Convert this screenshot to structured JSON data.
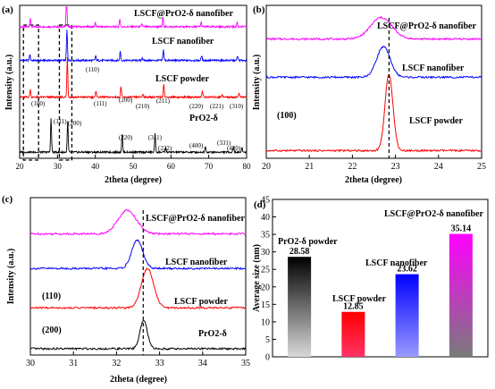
{
  "chart_data": [
    {
      "panel": "(a)",
      "type": "line",
      "xlabel": "2theta (degree)",
      "ylabel": "Intensity (a.u.)",
      "xlim": [
        20,
        80
      ],
      "xticks": [
        20,
        30,
        40,
        50,
        60,
        70,
        80
      ],
      "series": [
        {
          "name": "LSCF@PrO2-δ nanofiber",
          "color": "#ff00ff",
          "offset": 0.86,
          "peaks": [
            [
              22.8,
              0.06
            ],
            [
              32.4,
              0.22
            ],
            [
              40.0,
              0.03
            ],
            [
              46.5,
              0.05
            ],
            [
              52.3,
              0.02
            ],
            [
              57.9,
              0.06
            ],
            [
              68.0,
              0.03
            ],
            [
              77.5,
              0.03
            ]
          ]
        },
        {
          "name": "LSCF nanofiber",
          "color": "#0000ff",
          "offset": 0.64,
          "peaks": [
            [
              22.7,
              0.04
            ],
            [
              32.5,
              0.2
            ],
            [
              40.1,
              0.03
            ],
            [
              46.6,
              0.06
            ],
            [
              52.4,
              0.02
            ],
            [
              58.0,
              0.07
            ],
            [
              68.1,
              0.03
            ],
            [
              77.6,
              0.03
            ]
          ]
        },
        {
          "name": "LSCF powder",
          "color": "#ff0000",
          "offset": 0.4,
          "peaks": [
            [
              22.8,
              0.05
            ],
            [
              32.6,
              0.26
            ],
            [
              40.2,
              0.04
            ],
            [
              46.8,
              0.07
            ],
            [
              52.6,
              0.02
            ],
            [
              58.1,
              0.09
            ],
            [
              68.3,
              0.04
            ],
            [
              73.5,
              0.02
            ],
            [
              78.0,
              0.03
            ]
          ]
        },
        {
          "name": "PrO2-δ",
          "color": "#000000",
          "offset": 0.04,
          "peaks": [
            [
              28.3,
              0.22
            ],
            [
              32.7,
              0.2
            ],
            [
              47.1,
              0.12
            ],
            [
              55.8,
              0.12
            ],
            [
              58.6,
              0.03
            ],
            [
              69.1,
              0.04
            ],
            [
              76.5,
              0.04
            ],
            [
              78.8,
              0.03
            ]
          ]
        }
      ],
      "labels": {
        "s1": "LSCF@PrO2-δ nanofiber",
        "s2": "LSCF nanofiber",
        "s3": "LSCF powder",
        "s4": "PrO2-δ",
        "p100": "(100)",
        "p110": "(110)",
        "p111_red": "(111)",
        "p200_red": "(200)",
        "p210": "(210)",
        "p211": "(211)",
        "p220_red": "(220)",
        "p221": "(221)",
        "p310": "(310)",
        "p111_blk": "(111)",
        "p200_blk": "(200)",
        "p220_blk": "(220)",
        "p311": "(311)",
        "p222": "(222)",
        "p400": "(400)",
        "p331": "(331)",
        "p420": "(420)"
      },
      "highlight_boxes": [
        [
          21,
          25
        ],
        [
          30.5,
          33.8
        ]
      ]
    },
    {
      "panel": "(b)",
      "type": "line",
      "xlabel": "2theta (degree)",
      "ylabel": "Intensity (a.u.)",
      "xlim": [
        20,
        25
      ],
      "xticks": [
        20,
        21,
        22,
        23,
        24,
        25
      ],
      "marker_x": 22.85,
      "annotation": "(100)",
      "series": [
        {
          "name": "LSCF@PrO2-δ nanofiber",
          "color": "#ff00ff",
          "offset": 0.78,
          "peak": [
            22.67,
            0.14,
            0.35
          ]
        },
        {
          "name": "LSCF nanofiber",
          "color": "#0000ff",
          "offset": 0.53,
          "peak": [
            22.72,
            0.2,
            0.22
          ]
        },
        {
          "name": "LSCF powder",
          "color": "#ff0000",
          "offset": 0.05,
          "peak": [
            22.85,
            0.5,
            0.13
          ]
        }
      ]
    },
    {
      "panel": "(c)",
      "type": "line",
      "xlabel": "2theta (degree)",
      "ylabel": "Intensity (a.u.)",
      "xlim": [
        30,
        35
      ],
      "xticks": [
        30,
        31,
        32,
        33,
        34,
        35
      ],
      "marker_x": 32.62,
      "annotations": [
        "(110)",
        "(200)"
      ],
      "series": [
        {
          "name": "LSCF@PrO2-δ nanofiber",
          "color": "#ff00ff",
          "offset": 0.77,
          "peak": [
            32.25,
            0.15,
            0.3
          ]
        },
        {
          "name": "LSCF nanofiber",
          "color": "#0000ff",
          "offset": 0.55,
          "peak": [
            32.48,
            0.18,
            0.18
          ]
        },
        {
          "name": "LSCF powder",
          "color": "#ff0000",
          "offset": 0.3,
          "peak": [
            32.72,
            0.25,
            0.2
          ]
        },
        {
          "name": "PrO2-δ",
          "color": "#000000",
          "offset": 0.04,
          "peak": [
            32.63,
            0.18,
            0.12
          ]
        }
      ]
    },
    {
      "panel": "(d)",
      "type": "bar",
      "ylabel": "Average size (nm)",
      "ylim": [
        0,
        45
      ],
      "yticks": [
        0,
        5,
        10,
        15,
        20,
        25,
        30,
        35,
        40,
        45
      ],
      "categories": [
        "PrO2-δ powder",
        "LSCF powder",
        "LSCF nanofiber",
        "LSCF@PrO2-δ nanofiber"
      ],
      "values": [
        28.58,
        12.85,
        23.62,
        35.14
      ],
      "value_labels": [
        "28.58",
        "12.85",
        "23.62",
        "35.14"
      ],
      "bar_colors": [
        [
          "#000000",
          "#d9d9d9"
        ],
        [
          "#ff0000",
          "#ff3366"
        ],
        [
          "#0000ff",
          "#9a9aff"
        ],
        [
          "#ff00ff",
          "#7a7a7a"
        ]
      ]
    }
  ]
}
